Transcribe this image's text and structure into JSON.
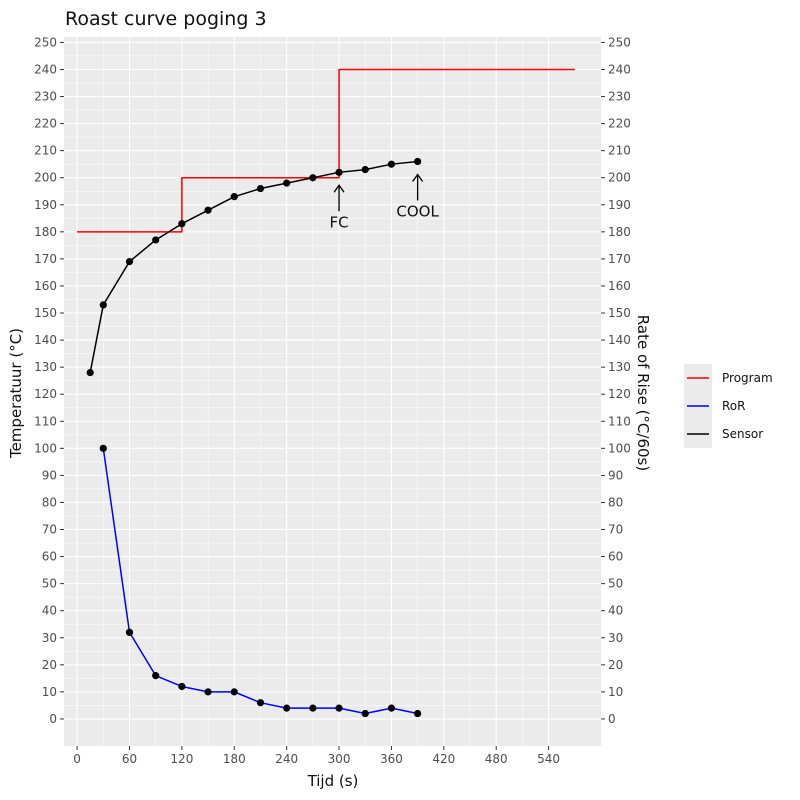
{
  "chart_data": {
    "type": "line",
    "title": "Roast curve poging 3",
    "xlabel": "Tijd (s)",
    "ylabel": "Temperatuur (°C)",
    "ylabel_right": "Rate of Rise (°C/60s)",
    "xlim": [
      -15,
      600
    ],
    "ylim": [
      -10,
      252
    ],
    "x_ticks": [
      0,
      60,
      120,
      180,
      240,
      300,
      360,
      420,
      480,
      540
    ],
    "y_ticks": [
      0,
      10,
      20,
      30,
      40,
      50,
      60,
      70,
      80,
      90,
      100,
      110,
      120,
      130,
      140,
      150,
      160,
      170,
      180,
      190,
      200,
      210,
      220,
      230,
      240,
      250
    ],
    "grid": true,
    "legend_position": "right",
    "series": [
      {
        "name": "Program",
        "color": "#ff0000",
        "step": true,
        "points": [
          [
            0,
            180
          ],
          [
            120,
            180
          ],
          [
            120,
            200
          ],
          [
            300,
            200
          ],
          [
            300,
            240
          ],
          [
            570,
            240
          ]
        ],
        "markers": false
      },
      {
        "name": "RoR",
        "color": "#0000ff",
        "step": false,
        "points": [
          [
            30,
            100
          ],
          [
            60,
            32
          ],
          [
            90,
            16
          ],
          [
            120,
            12
          ],
          [
            150,
            10
          ],
          [
            180,
            10
          ],
          [
            210,
            6
          ],
          [
            240,
            4
          ],
          [
            270,
            4
          ],
          [
            300,
            4
          ],
          [
            330,
            2
          ],
          [
            360,
            4
          ],
          [
            390,
            2
          ]
        ],
        "markers": true
      },
      {
        "name": "Sensor",
        "color": "#000000",
        "step": false,
        "points": [
          [
            15,
            128
          ],
          [
            30,
            153
          ],
          [
            60,
            169
          ],
          [
            90,
            177
          ],
          [
            120,
            183
          ],
          [
            150,
            188
          ],
          [
            180,
            193
          ],
          [
            210,
            196
          ],
          [
            240,
            198
          ],
          [
            270,
            200
          ],
          [
            300,
            202
          ],
          [
            330,
            203
          ],
          [
            360,
            205
          ],
          [
            390,
            206
          ]
        ],
        "markers": true
      }
    ],
    "annotations": [
      {
        "label": "FC",
        "x": 300,
        "y": 202
      },
      {
        "label": "COOL",
        "x": 390,
        "y": 206
      }
    ],
    "colors": {
      "panel_background": "#ebebeb",
      "grid": "#ffffff",
      "marker": "#000000"
    }
  }
}
